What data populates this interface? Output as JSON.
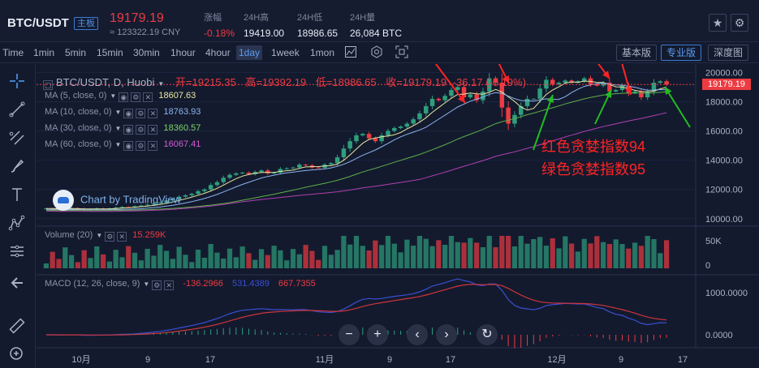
{
  "header": {
    "pair": "BTC/USDT",
    "board_badge": "主板",
    "last_price": "19179.19",
    "cny_price": "≈ 123322.19 CNY",
    "stats": [
      {
        "label": "涨幅",
        "value": "-0.18%",
        "red": true
      },
      {
        "label": "24H高",
        "value": "19419.00",
        "red": false
      },
      {
        "label": "24H低",
        "value": "18986.65",
        "red": false
      },
      {
        "label": "24H量",
        "value": "26,084 BTC",
        "red": false
      }
    ],
    "favorite_icon": "star-icon",
    "settings_icon": "gear-icon"
  },
  "toolbar": {
    "timeframes": [
      "Time",
      "1min",
      "5min",
      "15min",
      "30min",
      "1hour",
      "4hour",
      "1day",
      "1week",
      "1mon"
    ],
    "active_timeframe": "1day",
    "icons": [
      "candle-chart-icon",
      "indicator-settings-icon",
      "fullscreen-icon"
    ],
    "views": [
      "基本版",
      "专业版",
      "深度图"
    ],
    "active_view": "专业版"
  },
  "left_tools": [
    "crosshair-icon",
    "trend-line-icon",
    "fib-icon",
    "brush-icon",
    "text-icon",
    "pattern-icon",
    "measure-icon",
    "back-arrow-icon",
    "ruler-icon",
    "zoom-in-icon"
  ],
  "main": {
    "symbol": "BTC/USDT, D, Huobi",
    "ohlc": {
      "open_label": "开=",
      "open": "19215.35",
      "high_label": "高=",
      "high": "19392.19",
      "low_label": "低=",
      "low": "18986.65",
      "close_label": "收=",
      "close": "19179.19",
      "change": "-36.17 (-0.19%)"
    },
    "ma": [
      {
        "label": "MA (5, close, 0)",
        "value": "18607.63",
        "color": "#e6e6a0"
      },
      {
        "label": "MA (10, close, 0)",
        "value": "18763.93",
        "color": "#8fb4ee"
      },
      {
        "label": "MA (30, close, 0)",
        "value": "18360.57",
        "color": "#7ed36a"
      },
      {
        "label": "MA (60, close, 0)",
        "value": "16067.41",
        "color": "#c04fc0"
      }
    ],
    "price_tag": "19179.19",
    "watermark": "Chart by TradingView",
    "annotation_red": "红色贪婪指数94",
    "annotation_green": "绿色贪婪指数95"
  },
  "volume": {
    "label": "Volume (20)",
    "value": "15.259K"
  },
  "macd": {
    "label": "MACD (12, 26, close, 9)",
    "v1": "-136.2966",
    "v2": "531.4389",
    "v3": "667.7355"
  },
  "y_axis_price": [
    "20000.00",
    "18000.00",
    "16000.00",
    "14000.00",
    "12000.00",
    "10000.00"
  ],
  "y_axis_volume": [
    "50K",
    "0"
  ],
  "y_axis_macd": [
    "1000.0000",
    "0.0000"
  ],
  "x_axis": [
    "10月",
    "9",
    "17",
    "11月",
    "9",
    "17",
    "12月",
    "9",
    "17"
  ],
  "nav_buttons": [
    "−",
    "+",
    "‹",
    "›",
    "↻"
  ],
  "colors": {
    "up": "#2e9e7c",
    "down": "#ee3b42",
    "bg": "#131a2e",
    "accent": "#3a7bd5"
  },
  "chart_data": {
    "type": "candlestick",
    "y_range": [
      9600,
      20300
    ],
    "candles_close": [
      10700,
      10680,
      10650,
      10700,
      10720,
      10680,
      10600,
      10640,
      10700,
      10690,
      10710,
      10760,
      10800,
      10780,
      10850,
      10900,
      10960,
      11050,
      11100,
      11250,
      11350,
      11500,
      11600,
      11700,
      11880,
      12000,
      12300,
      12500,
      12800,
      13000,
      13100,
      13150,
      13050,
      13200,
      13300,
      13100,
      13150,
      13400,
      13450,
      13500,
      13700,
      13650,
      13500,
      13480,
      13700,
      13800,
      14200,
      14800,
      15300,
      15700,
      15800,
      15500,
      15300,
      15700,
      16000,
      16200,
      16300,
      16500,
      16800,
      17200,
      17700,
      18200,
      18100,
      18400,
      18800,
      19000,
      18300,
      18500,
      18100,
      18700,
      19600,
      19300,
      17600,
      16500,
      17100,
      17700,
      18200,
      18200,
      18900,
      19500,
      19200,
      19300,
      19450,
      19300,
      19400,
      19600,
      19200,
      19100,
      19300,
      18700,
      18800,
      19100,
      18600,
      18700,
      18300,
      18700,
      19300,
      19400,
      19180
    ],
    "ma5_approx_end": 18607.63,
    "ma10_approx_end": 18763.93,
    "ma30_approx_end": 18360.57,
    "ma60_approx_end": 16067.41
  }
}
